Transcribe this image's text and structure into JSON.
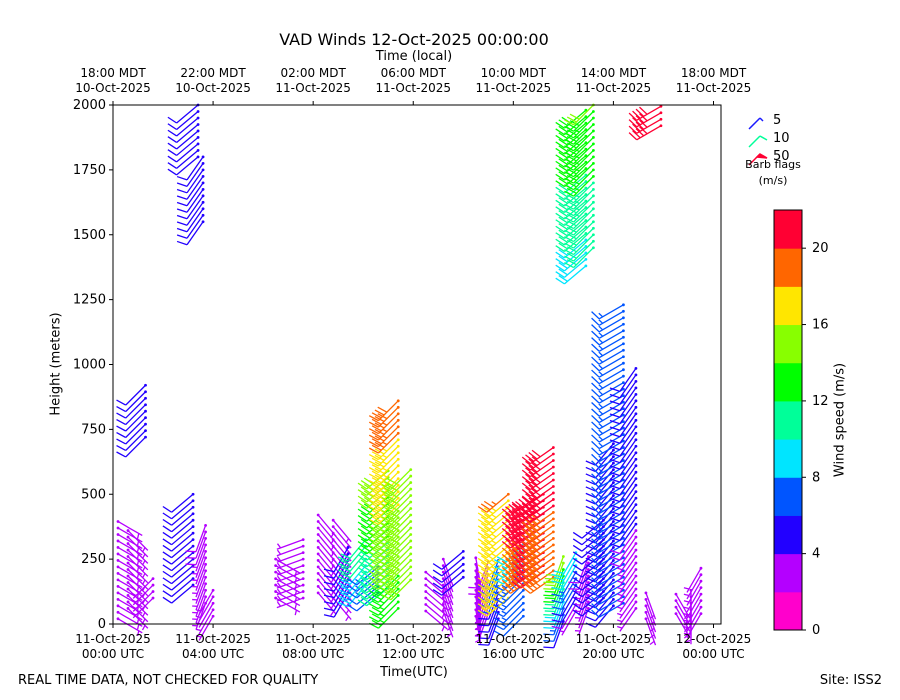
{
  "footer": {
    "disclaimer": "REAL TIME DATA, NOT CHECKED FOR QUALITY",
    "site": "Site: ISS2"
  },
  "legend": {
    "entries": [
      {
        "label": "5",
        "color": "#1a1aff"
      },
      {
        "label": "10",
        "color": "#00ff99"
      },
      {
        "label": "50",
        "color": "#ff0033"
      }
    ],
    "caption_line1": "Barb flags",
    "caption_line2": "(m/s)"
  },
  "chart_data": {
    "type": "wind_barb_profile",
    "title": "VAD Winds 12-Oct-2025 00:00:00",
    "top_axis_label": "Time (local)",
    "xlabel": "Time(UTC)",
    "ylabel": "Height (meters)",
    "ylim": [
      0,
      2000
    ],
    "xlim_hours": [
      0,
      24.3
    ],
    "yticks": [
      0,
      250,
      500,
      750,
      1000,
      1250,
      1500,
      1750,
      2000
    ],
    "bottom_ticks": [
      {
        "hour": 0,
        "line1": "11-Oct-2025",
        "line2": "00:00 UTC"
      },
      {
        "hour": 4,
        "line1": "11-Oct-2025",
        "line2": "04:00 UTC"
      },
      {
        "hour": 8,
        "line1": "11-Oct-2025",
        "line2": "08:00 UTC"
      },
      {
        "hour": 12,
        "line1": "11-Oct-2025",
        "line2": "12:00 UTC"
      },
      {
        "hour": 16,
        "line1": "11-Oct-2025",
        "line2": "16:00 UTC"
      },
      {
        "hour": 20,
        "line1": "11-Oct-2025",
        "line2": "20:00 UTC"
      },
      {
        "hour": 24,
        "line1": "12-Oct-2025",
        "line2": "00:00 UTC"
      }
    ],
    "top_ticks": [
      {
        "hour": 0,
        "line1": "18:00 MDT",
        "line2": "10-Oct-2025"
      },
      {
        "hour": 4,
        "line1": "22:00 MDT",
        "line2": "10-Oct-2025"
      },
      {
        "hour": 8,
        "line1": "02:00 MDT",
        "line2": "11-Oct-2025"
      },
      {
        "hour": 12,
        "line1": "06:00 MDT",
        "line2": "11-Oct-2025"
      },
      {
        "hour": 16,
        "line1": "10:00 MDT",
        "line2": "11-Oct-2025"
      },
      {
        "hour": 20,
        "line1": "14:00 MDT",
        "line2": "11-Oct-2025"
      },
      {
        "hour": 24,
        "line1": "18:00 MDT",
        "line2": "11-Oct-2025"
      }
    ],
    "colorbar": {
      "label": "Wind speed (m/s)",
      "range": [
        0,
        22
      ],
      "ticks": [
        0,
        4,
        8,
        12,
        16,
        20
      ],
      "colors": [
        "#ff00cc",
        "#b400ff",
        "#2200ff",
        "#0055ff",
        "#00e5ff",
        "#00ff99",
        "#00ff00",
        "#88ff00",
        "#ffe600",
        "#ff6600",
        "#ff0033"
      ]
    },
    "profiles": [
      {
        "hour": 0.2,
        "z": [
          20,
          400
        ],
        "speed": [
          3,
          3
        ],
        "dir": 120
      },
      {
        "hour": 0.6,
        "z": [
          60,
          380
        ],
        "speed": [
          2,
          3
        ],
        "dir": 135
      },
      {
        "hour": 1.3,
        "z": [
          720,
          930
        ],
        "speed": [
          4,
          4
        ],
        "dir": 225
      },
      {
        "hour": 1.6,
        "z": [
          100,
          180
        ],
        "speed": [
          2,
          2
        ],
        "dir": 225
      },
      {
        "hour": 3.4,
        "z": [
          1800,
          2000
        ],
        "speed": [
          4,
          4
        ],
        "dir": 230
      },
      {
        "hour": 3.6,
        "z": [
          1550,
          1800
        ],
        "speed": [
          4,
          4
        ],
        "dir": 215
      },
      {
        "hour": 3.2,
        "z": [
          150,
          500
        ],
        "speed": [
          4,
          5
        ],
        "dir": 230
      },
      {
        "hour": 3.7,
        "z": [
          80,
          400
        ],
        "speed": [
          3,
          4
        ],
        "dir": 200
      },
      {
        "hour": 4.0,
        "z": [
          30,
          150
        ],
        "speed": [
          3,
          3
        ],
        "dir": 210
      },
      {
        "hour": 6.5,
        "z": [
          100,
          250
        ],
        "speed": [
          3,
          3
        ],
        "dir": 120
      },
      {
        "hour": 7.6,
        "z": [
          100,
          330
        ],
        "speed": [
          2,
          2
        ],
        "dir": 250
      },
      {
        "hour": 8.2,
        "z": [
          120,
          420
        ],
        "speed": [
          2,
          3
        ],
        "dir": 140
      },
      {
        "hour": 8.8,
        "z": [
          100,
          400
        ],
        "speed": [
          2,
          3
        ],
        "dir": 140
      },
      {
        "hour": 9.4,
        "z": [
          120,
          300
        ],
        "speed": [
          4,
          5
        ],
        "dir": 210
      },
      {
        "hour": 10.1,
        "z": [
          150,
          330
        ],
        "speed": [
          9,
          11
        ],
        "dir": 220
      },
      {
        "hour": 10.6,
        "z": [
          120,
          230
        ],
        "speed": [
          6,
          7
        ],
        "dir": 230
      },
      {
        "hour": 11.0,
        "z": [
          140,
          600
        ],
        "speed": [
          10,
          15
        ],
        "dir": 230
      },
      {
        "hour": 11.4,
        "z": [
          60,
          860
        ],
        "speed": [
          13,
          19
        ],
        "dir": 225
      },
      {
        "hour": 11.9,
        "z": [
          170,
          600
        ],
        "speed": [
          14,
          15
        ],
        "dir": 225
      },
      {
        "hour": 12.5,
        "z": [
          50,
          220
        ],
        "speed": [
          3,
          3
        ],
        "dir": 130
      },
      {
        "hour": 13.2,
        "z": [
          50,
          260
        ],
        "speed": [
          2,
          3
        ],
        "dir": 160
      },
      {
        "hour": 14.0,
        "z": [
          180,
          300
        ],
        "speed": [
          4,
          4
        ],
        "dir": 230
      },
      {
        "hour": 14.5,
        "z": [
          30,
          260
        ],
        "speed": [
          2,
          3
        ],
        "dir": 170
      },
      {
        "hour": 15.0,
        "z": [
          40,
          250
        ],
        "speed": [
          3,
          4
        ],
        "dir": 200
      },
      {
        "hour": 15.4,
        "z": [
          20,
          250
        ],
        "speed": [
          5,
          7
        ],
        "dir": 200
      },
      {
        "hour": 15.8,
        "z": [
          100,
          500
        ],
        "speed": [
          17,
          18
        ],
        "dir": 230
      },
      {
        "hour": 16.4,
        "z": [
          30,
          320
        ],
        "speed": [
          6,
          9
        ],
        "dir": 225
      },
      {
        "hour": 16.8,
        "z": [
          180,
          500
        ],
        "speed": [
          19,
          21
        ],
        "dir": 235
      },
      {
        "hour": 17.2,
        "z": [
          200,
          500
        ],
        "speed": [
          20,
          21
        ],
        "dir": 235
      },
      {
        "hour": 17.6,
        "z": [
          180,
          700
        ],
        "speed": [
          19,
          21
        ],
        "dir": 235
      },
      {
        "hour": 18.0,
        "z": [
          10,
          280
        ],
        "speed": [
          5,
          16
        ],
        "dir": 200
      },
      {
        "hour": 18.5,
        "z": [
          50,
          280
        ],
        "speed": [
          3,
          10
        ],
        "dir": 210
      },
      {
        "hour": 19.0,
        "z": [
          60,
          280
        ],
        "speed": [
          3,
          4
        ],
        "dir": 200
      },
      {
        "hour": 18.9,
        "z": [
          1380,
          2000
        ],
        "speed": [
          9,
          14
        ],
        "dir": 230
      },
      {
        "hour": 19.2,
        "z": [
          1450,
          2000
        ],
        "speed": [
          10,
          14
        ],
        "dir": 225
      },
      {
        "hour": 19.6,
        "z": [
          100,
          420
        ],
        "speed": [
          5,
          6
        ],
        "dir": 230
      },
      {
        "hour": 20.0,
        "z": [
          70,
          700
        ],
        "speed": [
          5,
          6
        ],
        "dir": 220
      },
      {
        "hour": 20.4,
        "z": [
          80,
          1250
        ],
        "speed": [
          6,
          7
        ],
        "dir": 240
      },
      {
        "hour": 20.9,
        "z": [
          60,
          1000
        ],
        "speed": [
          3,
          6
        ],
        "dir": 215
      },
      {
        "hour": 21.3,
        "z": [
          20,
          120
        ],
        "speed": [
          3,
          3
        ],
        "dir": 160
      },
      {
        "hour": 21.9,
        "z": [
          1920,
          2000
        ],
        "speed": [
          21,
          21
        ],
        "dir": 240
      },
      {
        "hour": 22.5,
        "z": [
          40,
          130
        ],
        "speed": [
          3,
          3
        ],
        "dir": 150
      },
      {
        "hour": 23.1,
        "z": [
          30,
          150
        ],
        "speed": [
          3,
          3
        ],
        "dir": 180
      },
      {
        "hour": 23.5,
        "z": [
          40,
          220
        ],
        "speed": [
          3,
          3
        ],
        "dir": 210
      }
    ]
  }
}
